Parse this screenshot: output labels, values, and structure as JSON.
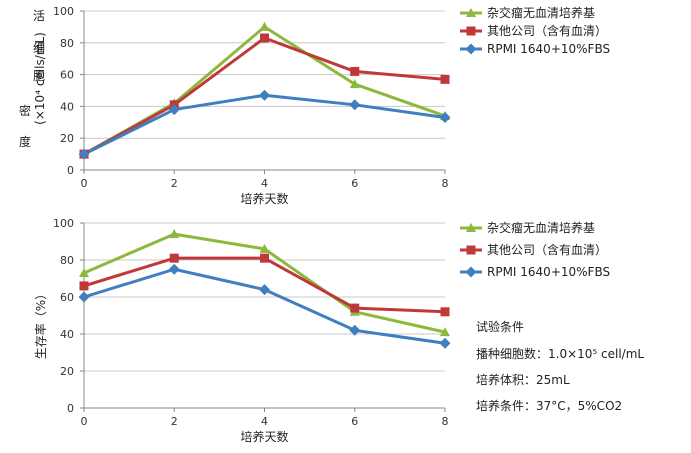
{
  "chart_data": [
    {
      "type": "line",
      "title": "",
      "xlabel": "培养天数",
      "ylabel": [
        "活",
        "细",
        "胞",
        "密",
        "度"
      ],
      "ylabel_unit": "(×10⁴ cells/mL)",
      "x": [
        0,
        2,
        4,
        6,
        8
      ],
      "xlim": [
        0,
        8
      ],
      "ylim": [
        0,
        100
      ],
      "yticks": [
        0,
        20,
        40,
        60,
        80,
        100
      ],
      "grid": true,
      "legend_position": "right",
      "series": [
        {
          "name": "杂交瘤无血清培养基",
          "color": "#8cb83c",
          "marker": "triangle",
          "values": [
            10,
            42,
            90,
            54,
            34
          ]
        },
        {
          "name": "其他公司（含有血清）",
          "color": "#c0393a",
          "marker": "square",
          "values": [
            10,
            41,
            83,
            62,
            57
          ]
        },
        {
          "name": "RPMI 1640+10%FBS",
          "color": "#3f7fbf",
          "marker": "diamond",
          "values": [
            10,
            38,
            47,
            41,
            33
          ]
        }
      ]
    },
    {
      "type": "line",
      "title": "",
      "xlabel": "培养天数",
      "ylabel": "生存率（%）",
      "x": [
        0,
        2,
        4,
        6,
        8
      ],
      "xlim": [
        0,
        8
      ],
      "ylim": [
        0,
        100
      ],
      "yticks": [
        0,
        20,
        40,
        60,
        80,
        100
      ],
      "grid": true,
      "legend_position": "right",
      "series": [
        {
          "name": "杂交瘤无血清培养基",
          "color": "#8cb83c",
          "marker": "triangle",
          "values": [
            73,
            94,
            86,
            52,
            41
          ]
        },
        {
          "name": "其他公司（含有血清）",
          "color": "#c0393a",
          "marker": "square",
          "values": [
            66,
            81,
            81,
            54,
            52
          ]
        },
        {
          "name": "RPMI 1640+10%FBS",
          "color": "#3f7fbf",
          "marker": "diamond",
          "values": [
            60,
            75,
            64,
            42,
            35
          ]
        }
      ]
    }
  ],
  "conditions": {
    "title": "试验条件",
    "lines": [
      "播种细胞数：1.0×10⁵ cell/mL",
      "培养体积：25mL",
      "培养条件：37°C，5%CO2"
    ]
  }
}
